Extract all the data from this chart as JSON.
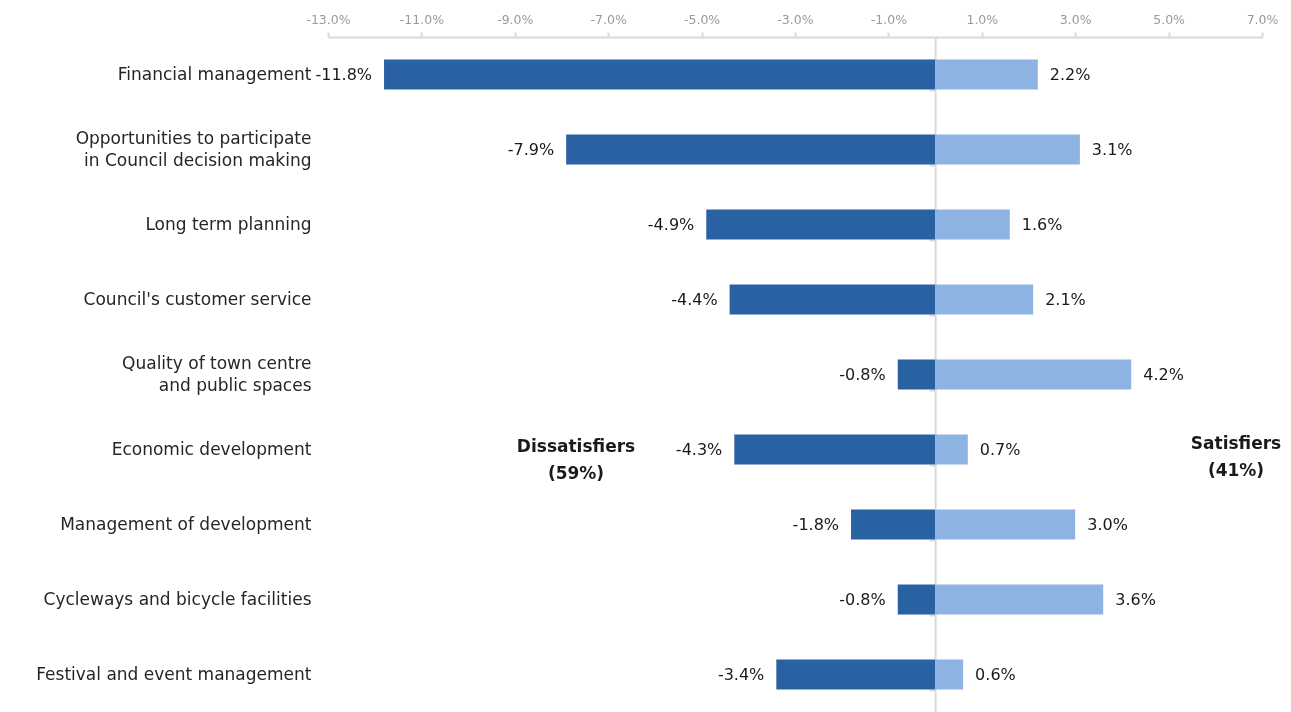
{
  "chart_data": {
    "type": "bar",
    "orientation": "horizontal",
    "stacked": true,
    "categories": [
      "Financial management",
      "Opportunities to participate in Council decision making",
      "Long term planning",
      "Council's customer service",
      "Quality of town centre and public spaces",
      "Economic development",
      "Management of development",
      "Cycleways and bicycle facilities",
      "Festival and event management"
    ],
    "series": [
      {
        "color": "#2a61a3",
        "values": [
          -11.8,
          -7.9,
          -4.9,
          -4.4,
          -0.8,
          -4.3,
          -1.8,
          -0.8,
          -3.4
        ],
        "value_labels": [
          "-11.8%",
          "-7.9%",
          "-4.9%",
          "-4.4%",
          "-0.8%",
          "-4.3%",
          "-1.8%",
          "-0.8%",
          "-3.4%"
        ]
      },
      {
        "color": "#8db3e2",
        "values": [
          2.2,
          3.1,
          1.6,
          2.1,
          4.2,
          0.7,
          3.0,
          3.6,
          0.6
        ],
        "value_labels": [
          "2.2%",
          "3.1%",
          "1.6%",
          "2.1%",
          "4.2%",
          "0.7%",
          "3.0%",
          "3.6%",
          "0.6%"
        ]
      }
    ],
    "xlim": [
      -13,
      7
    ],
    "xticks": [
      {
        "value": -13,
        "label": "-13.0%"
      },
      {
        "value": -11,
        "label": "-11.0%"
      },
      {
        "value": -9,
        "label": "-9.0%"
      },
      {
        "value": -7,
        "label": "-7.0%"
      },
      {
        "value": -5,
        "label": "-5.0%"
      },
      {
        "value": -3,
        "label": "-3.0%"
      },
      {
        "value": -1,
        "label": "-1.0%"
      },
      {
        "value": 1,
        "label": "1.0%"
      },
      {
        "value": 3,
        "label": "3.0%"
      },
      {
        "value": 5,
        "label": "5.0%"
      },
      {
        "value": 7,
        "label": "7.0%"
      }
    ],
    "annotations": [
      "Dissatisfiers (59%)",
      "Satisfiers (41%)"
    ]
  }
}
